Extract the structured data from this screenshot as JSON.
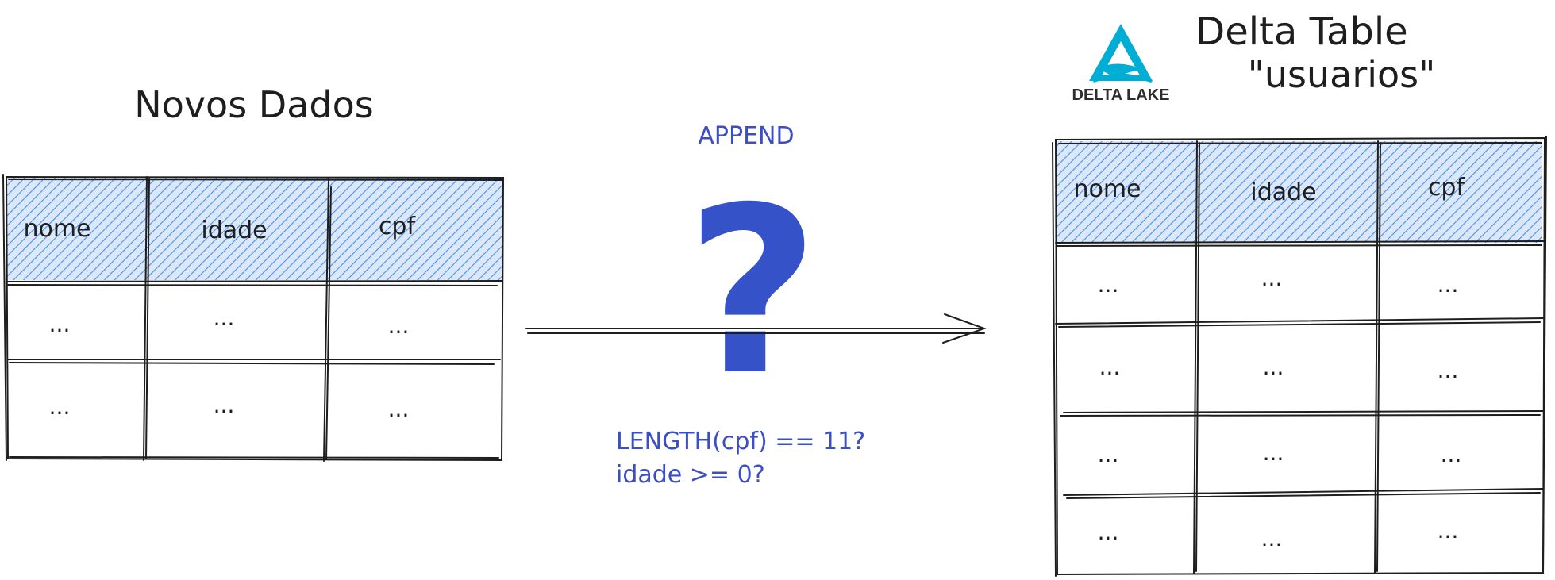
{
  "left_table": {
    "title": "Novos Dados",
    "headers": [
      "nome",
      "idade",
      "cpf"
    ],
    "rows": [
      [
        "...",
        "...",
        "..."
      ],
      [
        "...",
        "...",
        "..."
      ]
    ]
  },
  "right_table": {
    "title_line1": "Delta Table",
    "title_line2": "\"usuarios\"",
    "headers": [
      "nome",
      "idade",
      "cpf"
    ],
    "rows": [
      [
        "...",
        "...",
        "..."
      ],
      [
        "...",
        "...",
        "..."
      ],
      [
        "...",
        "...",
        "..."
      ],
      [
        "...",
        "...",
        "..."
      ]
    ]
  },
  "operation": {
    "label": "APPEND",
    "question_mark": "?",
    "condition_1": "LENGTH(cpf) == 11?",
    "condition_2": "idade >= 0?"
  },
  "logo": {
    "text": "DELTA LAKE",
    "icon": "delta-lake-icon"
  },
  "colors": {
    "header_hatch": "#4a90e2",
    "header_bg": "#dbe8fb",
    "accent_blue": "#3b4ec4",
    "logo_cyan": "#00add4",
    "ink": "#1e1e1e"
  }
}
